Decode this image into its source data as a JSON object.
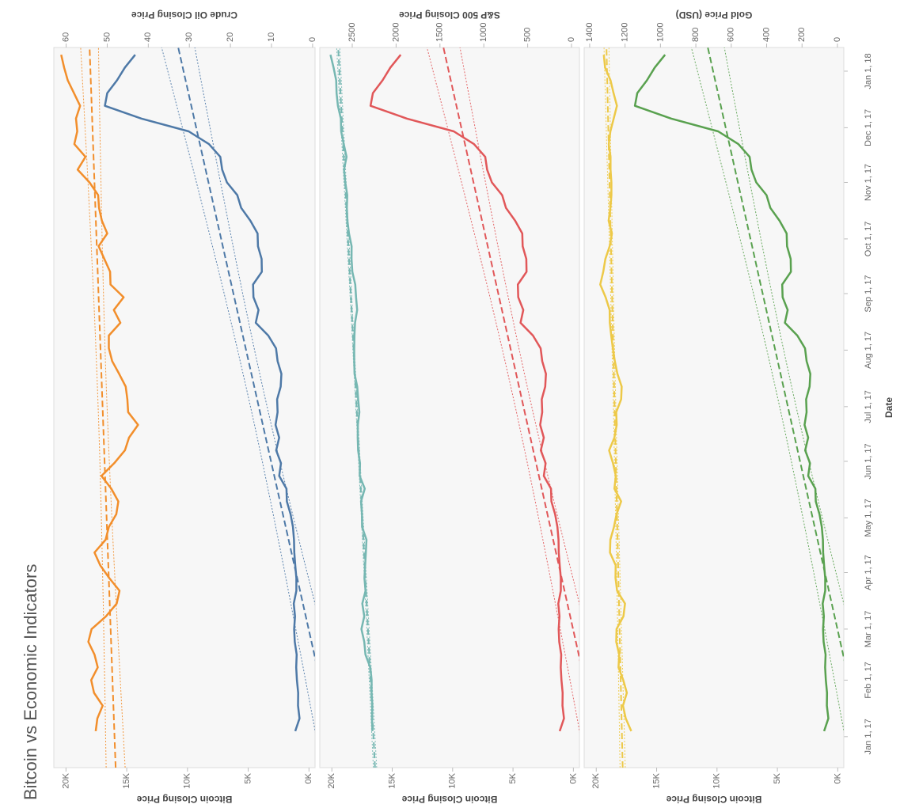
{
  "chart_data": {
    "type": "line",
    "title": "Bitcoin vs Economic Indicators",
    "xlabel": "Date",
    "ylabel": "Bitcoin Closing Price",
    "x": [
      "2017-01-04",
      "2017-01-11",
      "2017-01-18",
      "2017-01-25",
      "2017-02-01",
      "2017-02-08",
      "2017-02-15",
      "2017-02-22",
      "2017-03-01",
      "2017-03-08",
      "2017-03-15",
      "2017-03-22",
      "2017-03-29",
      "2017-04-05",
      "2017-04-12",
      "2017-04-19",
      "2017-04-26",
      "2017-05-03",
      "2017-05-10",
      "2017-05-17",
      "2017-05-24",
      "2017-05-31",
      "2017-06-07",
      "2017-06-14",
      "2017-06-21",
      "2017-06-28",
      "2017-07-05",
      "2017-07-12",
      "2017-07-19",
      "2017-07-26",
      "2017-08-02",
      "2017-08-09",
      "2017-08-16",
      "2017-08-23",
      "2017-08-30",
      "2017-09-06",
      "2017-09-13",
      "2017-09-20",
      "2017-09-27",
      "2017-10-04",
      "2017-10-11",
      "2017-10-18",
      "2017-10-25",
      "2017-11-01",
      "2017-11-08",
      "2017-11-15",
      "2017-11-22",
      "2017-11-29",
      "2017-12-06",
      "2017-12-13",
      "2017-12-20",
      "2017-12-27",
      "2018-01-03",
      "2018-01-10"
    ],
    "xlim": [
      "2016-12-15",
      "2018-01-14"
    ],
    "xticks": [
      {
        "value": "2017-01-01",
        "label": "Jan 1, 17"
      },
      {
        "value": "2017-02-01",
        "label": "Feb 1, 17"
      },
      {
        "value": "2017-03-01",
        "label": "Mar 1, 17"
      },
      {
        "value": "2017-04-01",
        "label": "Apr 1, 17"
      },
      {
        "value": "2017-05-01",
        "label": "May 1, 17"
      },
      {
        "value": "2017-06-01",
        "label": "Jun 1, 17"
      },
      {
        "value": "2017-07-01",
        "label": "Jul 1, 17"
      },
      {
        "value": "2017-08-01",
        "label": "Aug 1, 17"
      },
      {
        "value": "2017-09-01",
        "label": "Sep 1, 17"
      },
      {
        "value": "2017-10-01",
        "label": "Oct 1, 17"
      },
      {
        "value": "2017-11-01",
        "label": "Nov 1, 17"
      },
      {
        "value": "2017-12-01",
        "label": "Dec 1, 17"
      },
      {
        "value": "2018-01-01",
        "label": "Jan 1, 18"
      }
    ],
    "ylim": [
      -500,
      21000
    ],
    "yticks": [
      {
        "value": 0,
        "label": "0K"
      },
      {
        "value": 5000,
        "label": "5K"
      },
      {
        "value": 10000,
        "label": "10K"
      },
      {
        "value": 15000,
        "label": "15K"
      },
      {
        "value": 20000,
        "label": "20K"
      }
    ],
    "trend_lines": true,
    "panels": [
      {
        "y2label": "Crude Oil Closing Price",
        "y2lim": [
          -0.6,
          63
        ],
        "y2ticks": [
          0,
          10,
          20,
          30,
          40,
          50,
          60
        ],
        "series": [
          {
            "color": "#4e79a7",
            "values": [
              1130,
              780,
              900,
              890,
              990,
              1050,
              1010,
              1170,
              1220,
              1150,
              1250,
              1040,
              1040,
              1130,
              1210,
              1230,
              1320,
              1510,
              1820,
              1850,
              2450,
              2300,
              2700,
              2450,
              2750,
              2580,
              2620,
              2330,
              2270,
              2580,
              2710,
              3350,
              4380,
              4150,
              4570,
              4600,
              3880,
              3900,
              4200,
              4230,
              4820,
              5580,
              5900,
              6750,
              7140,
              7300,
              8230,
              9900,
              13800,
              16800,
              16600,
              15800,
              15150,
              14300
            ]
          },
          {
            "color": "#f28e2b",
            "axis": "y2",
            "values": [
              52.8,
              52.4,
              51.1,
              53.2,
              53.9,
              52.3,
              53.1,
              54.6,
              53.8,
              50.3,
              47.7,
              47.0,
              49.5,
              51.7,
              53.1,
              50.4,
              49.6,
              47.8,
              47.3,
              49.0,
              51.4,
              48.3,
              45.7,
              44.7,
              42.5,
              44.9,
              45.1,
              45.5,
              47.1,
              48.8,
              49.6,
              49.6,
              46.8,
              48.4,
              46.0,
              49.2,
              49.3,
              50.7,
              52.1,
              50.0,
              51.3,
              52.0,
              52.2,
              54.3,
              57.2,
              55.3,
              58.0,
              57.3,
              57.6,
              56.6,
              58.1,
              59.6,
              60.5,
              61.2
            ]
          }
        ]
      },
      {
        "y2label": "S&P 500 Closing Price",
        "y2lim": [
          -90,
          2870
        ],
        "y2ticks": [
          0,
          500,
          1000,
          1500,
          2000,
          2500
        ],
        "series": [
          {
            "color": "#e15759",
            "values": [
              1130,
              780,
              900,
              890,
              990,
              1050,
              1010,
              1170,
              1220,
              1150,
              1250,
              1040,
              1040,
              1130,
              1210,
              1230,
              1320,
              1510,
              1820,
              1850,
              2450,
              2300,
              2700,
              2450,
              2750,
              2580,
              2620,
              2330,
              2270,
              2580,
              2710,
              3350,
              4380,
              4150,
              4570,
              4600,
              3880,
              3900,
              4200,
              4230,
              4820,
              5580,
              5900,
              6750,
              7140,
              7300,
              8230,
              9900,
              13800,
              16800,
              16600,
              15800,
              15150,
              14300
            ]
          },
          {
            "color": "#76b7b2",
            "axis": "y2",
            "values": [
              2270,
              2275,
              2271,
              2280,
              2279,
              2294,
              2349,
              2363,
              2395,
              2363,
              2385,
              2348,
              2361,
              2353,
              2345,
              2338,
              2388,
              2389,
              2400,
              2357,
              2415,
              2412,
              2433,
              2438,
              2436,
              2419,
              2432,
              2443,
              2474,
              2477,
              2477,
              2475,
              2468,
              2444,
              2457,
              2466,
              2499,
              2508,
              2507,
              2537,
              2555,
              2561,
              2557,
              2579,
              2594,
              2565,
              2597,
              2626,
              2630,
              2663,
              2679,
              2683,
              2713,
              2748
            ]
          }
        ]
      },
      {
        "y2label": "Gold Price (USD)",
        "y2lim": [
          -36,
          1431
        ],
        "y2ticks": [
          0,
          200,
          400,
          600,
          800,
          1000,
          1200,
          1400
        ],
        "series": [
          {
            "color": "#59a14f",
            "values": [
              1130,
              780,
              900,
              890,
              990,
              1050,
              1010,
              1170,
              1220,
              1150,
              1250,
              1040,
              1040,
              1130,
              1210,
              1230,
              1320,
              1510,
              1820,
              1850,
              2450,
              2300,
              2700,
              2450,
              2750,
              2580,
              2620,
              2330,
              2270,
              2580,
              2710,
              3350,
              4380,
              4150,
              4570,
              4600,
              3880,
              3900,
              4200,
              4230,
              4820,
              5580,
              5900,
              6750,
              7140,
              7300,
              8230,
              9900,
              13800,
              16800,
              16600,
              15800,
              15150,
              14300
            ]
          },
          {
            "color": "#edc948",
            "axis": "y2",
            "values": [
              1165,
              1196,
              1212,
              1190,
              1210,
              1237,
              1233,
              1250,
              1248,
              1209,
              1200,
              1245,
              1254,
              1253,
              1285,
              1283,
              1263,
              1248,
              1222,
              1260,
              1252,
              1268,
              1290,
              1260,
              1247,
              1250,
              1222,
              1219,
              1243,
              1258,
              1269,
              1278,
              1286,
              1287,
              1310,
              1340,
              1323,
              1311,
              1287,
              1274,
              1293,
              1283,
              1277,
              1277,
              1282,
              1282,
              1292,
              1283,
              1264,
              1246,
              1265,
              1282,
              1313,
              1320
            ]
          }
        ]
      }
    ]
  }
}
